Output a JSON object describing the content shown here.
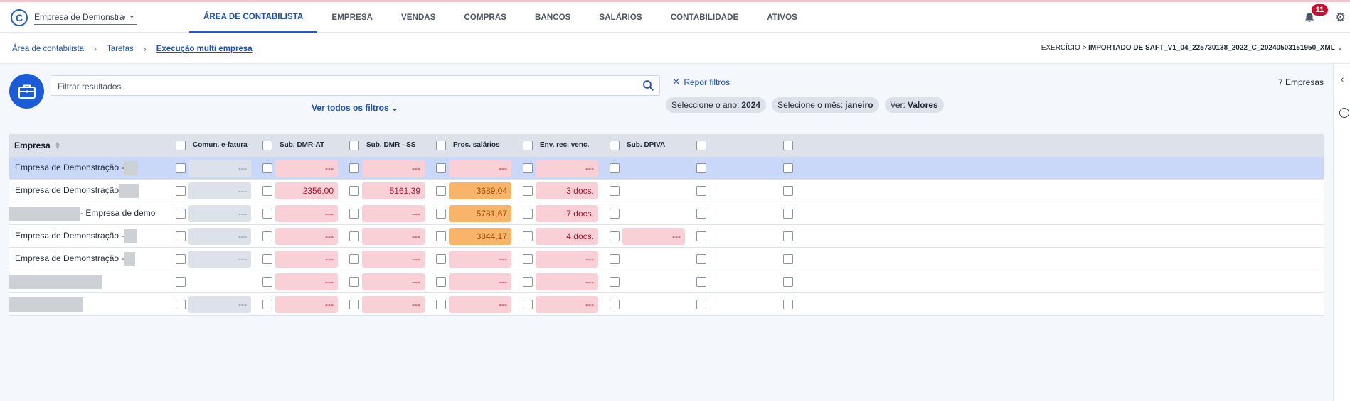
{
  "topbar": {
    "company": "Empresa de Demonstração",
    "nav": [
      "ÁREA DE CONTABILISTA",
      "EMPRESA",
      "VENDAS",
      "COMPRAS",
      "BANCOS",
      "SALÁRIOS",
      "CONTABILIDADE",
      "ATIVOS"
    ],
    "active_nav": 0,
    "notifications": "11"
  },
  "breadcrumb": [
    "Área de contabilista",
    "Tarefas",
    "Execução multi empresa"
  ],
  "exercise": {
    "label": "EXERCÍCIO > ",
    "value": "IMPORTADO DE SAFT_V1_04_225730138_2022_C_20240503151950_XML"
  },
  "filters": {
    "search_placeholder": "Filtrar resultados",
    "see_all": "Ver todos os filtros",
    "reset": "Repor filtros",
    "chips": [
      {
        "label": "Seleccione o ano:",
        "value": "2024"
      },
      {
        "label": "Selecione o mês:",
        "value": "janeiro"
      },
      {
        "label": "Ver:",
        "value": "Valores"
      }
    ],
    "count": "7 Empresas"
  },
  "table": {
    "name_header": "Empresa",
    "columns": [
      "Comun. e-fatura",
      "Sub. DMR-AT",
      "Sub. DMR - SS",
      "Proc. salários",
      "Env. rec. venc.",
      "Sub. DPIVA",
      "",
      ""
    ],
    "rows": [
      {
        "name": "Empresa de Demonstração -",
        "blur": 20,
        "blur_first": false,
        "selected": true,
        "cells": [
          {
            "t": "gray",
            "v": "---"
          },
          {
            "t": "red",
            "v": "---"
          },
          {
            "t": "red",
            "v": "---"
          },
          {
            "t": "red",
            "v": "---"
          },
          {
            "t": "red",
            "v": "---"
          },
          null,
          null,
          null
        ]
      },
      {
        "name": "Empresa de Demonstração",
        "blur": 28,
        "blur_first": false,
        "selected": false,
        "cells": [
          {
            "t": "gray",
            "v": "---"
          },
          {
            "t": "red",
            "v": "2356,00"
          },
          {
            "t": "red",
            "v": "5161,39"
          },
          {
            "t": "orange",
            "v": "3689,04"
          },
          {
            "t": "red",
            "v": "3 docs."
          },
          null,
          null,
          null
        ]
      },
      {
        "name": "- Empresa de demo",
        "blur": 100,
        "blur_first": true,
        "selected": false,
        "cells": [
          {
            "t": "gray",
            "v": "---"
          },
          {
            "t": "red",
            "v": "---"
          },
          {
            "t": "red",
            "v": "---"
          },
          {
            "t": "orange",
            "v": "5781,67"
          },
          {
            "t": "red",
            "v": "7 docs."
          },
          null,
          null,
          null
        ]
      },
      {
        "name": "Empresa de Demonstração -",
        "blur": 18,
        "blur_first": false,
        "selected": false,
        "cells": [
          {
            "t": "gray",
            "v": "---"
          },
          {
            "t": "red",
            "v": "---"
          },
          {
            "t": "red",
            "v": "---"
          },
          {
            "t": "orange",
            "v": "3844,17"
          },
          {
            "t": "red",
            "v": "4 docs."
          },
          {
            "t": "red",
            "v": "---"
          },
          null,
          null
        ]
      },
      {
        "name": "Empresa de Demonstração -",
        "blur": 16,
        "blur_first": false,
        "selected": false,
        "cells": [
          {
            "t": "gray",
            "v": "---"
          },
          {
            "t": "red",
            "v": "---"
          },
          {
            "t": "red",
            "v": "---"
          },
          {
            "t": "red",
            "v": "---"
          },
          {
            "t": "red",
            "v": "---"
          },
          null,
          null,
          null
        ]
      },
      {
        "name": "",
        "blur": 130,
        "blur_first": true,
        "selected": false,
        "cells": [
          null,
          {
            "t": "red",
            "v": "---"
          },
          {
            "t": "red",
            "v": "---"
          },
          {
            "t": "red",
            "v": "---"
          },
          {
            "t": "red",
            "v": "---"
          },
          null,
          null,
          null
        ]
      },
      {
        "name": "",
        "blur": 104,
        "blur_first": true,
        "selected": false,
        "cells": [
          {
            "t": "gray",
            "v": "---"
          },
          {
            "t": "red",
            "v": "---"
          },
          {
            "t": "red",
            "v": "---"
          },
          {
            "t": "red",
            "v": "---"
          },
          {
            "t": "red",
            "v": "---"
          },
          null,
          null,
          null
        ]
      }
    ]
  }
}
